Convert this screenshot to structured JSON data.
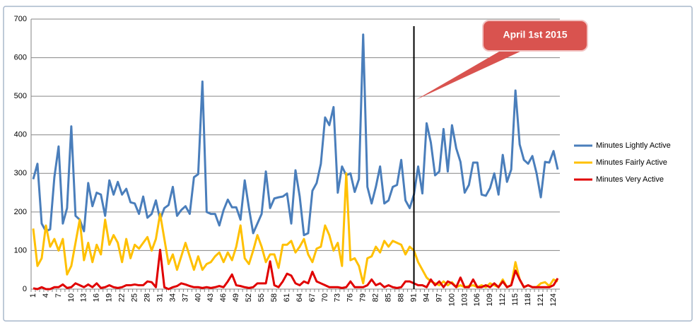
{
  "chart_data": {
    "type": "line",
    "categories": [
      1,
      null,
      null,
      4,
      null,
      null,
      7,
      null,
      null,
      10,
      null,
      null,
      13,
      null,
      null,
      16,
      null,
      null,
      19,
      null,
      null,
      22,
      null,
      null,
      25,
      null,
      null,
      28,
      null,
      null,
      31,
      null,
      null,
      34,
      null,
      null,
      37,
      null,
      null,
      40,
      null,
      null,
      43,
      null,
      null,
      46,
      null,
      null,
      49,
      null,
      null,
      52,
      null,
      null,
      55,
      null,
      null,
      58,
      null,
      null,
      61,
      null,
      null,
      64,
      null,
      null,
      67,
      null,
      null,
      70,
      null,
      null,
      73,
      null,
      null,
      76,
      null,
      null,
      79,
      null,
      null,
      82,
      null,
      null,
      85,
      null,
      null,
      88,
      null,
      null,
      91,
      null,
      null,
      94,
      null,
      null,
      97,
      null,
      null,
      100,
      null,
      null,
      103,
      null,
      null,
      106,
      null,
      null,
      109,
      null,
      null,
      112,
      null,
      null,
      115,
      null,
      null,
      118,
      null,
      null,
      121,
      null,
      null,
      124,
      null
    ],
    "series": [
      {
        "name": "Minutes Lightly Active",
        "color": "#4a7ebb",
        "values": [
          285,
          325,
          170,
          150,
          155,
          290,
          370,
          170,
          210,
          422,
          190,
          180,
          150,
          275,
          215,
          250,
          245,
          190,
          282,
          245,
          278,
          245,
          260,
          225,
          222,
          195,
          240,
          185,
          195,
          230,
          180,
          210,
          218,
          265,
          190,
          205,
          215,
          195,
          290,
          298,
          538,
          200,
          195,
          195,
          165,
          205,
          232,
          212,
          212,
          180,
          282,
          210,
          145,
          170,
          195,
          305,
          210,
          235,
          238,
          240,
          248,
          170,
          308,
          240,
          140,
          145,
          255,
          275,
          325,
          445,
          425,
          472,
          250,
          318,
          295,
          300,
          252,
          285,
          660,
          265,
          222,
          265,
          318,
          222,
          230,
          265,
          270,
          335,
          230,
          210,
          245,
          318,
          248,
          430,
          380,
          295,
          305,
          415,
          305,
          425,
          365,
          330,
          250,
          270,
          328,
          328,
          245,
          242,
          262,
          300,
          245,
          348,
          278,
          310,
          515,
          375,
          335,
          325,
          345,
          300,
          238,
          330,
          328,
          358,
          310
        ]
      },
      {
        "name": "Minutes Fairly Active",
        "color": "#ffc000",
        "values": [
          157,
          60,
          80,
          165,
          110,
          130,
          100,
          130,
          38,
          60,
          120,
          180,
          75,
          120,
          70,
          115,
          90,
          180,
          115,
          140,
          120,
          70,
          130,
          80,
          115,
          105,
          120,
          135,
          100,
          130,
          195,
          130,
          65,
          90,
          50,
          85,
          120,
          85,
          50,
          85,
          50,
          65,
          70,
          85,
          95,
          70,
          95,
          75,
          110,
          165,
          80,
          65,
          100,
          140,
          110,
          70,
          90,
          90,
          55,
          115,
          115,
          125,
          95,
          110,
          130,
          90,
          70,
          105,
          110,
          165,
          140,
          100,
          120,
          60,
          300,
          75,
          80,
          60,
          15,
          80,
          85,
          110,
          95,
          125,
          110,
          125,
          120,
          115,
          90,
          110,
          100,
          70,
          50,
          30,
          20,
          15,
          10,
          20,
          10,
          18,
          5,
          10,
          5,
          8,
          10,
          5,
          10,
          5,
          15,
          10,
          5,
          25,
          5,
          10,
          70,
          25,
          5,
          10,
          5,
          5,
          15,
          18,
          8,
          25,
          20
        ]
      },
      {
        "name": "Minutes Very Active",
        "color": "#e00000",
        "values": [
          2,
          0,
          5,
          0,
          0,
          5,
          5,
          12,
          3,
          5,
          15,
          10,
          5,
          12,
          5,
          15,
          3,
          5,
          10,
          5,
          3,
          5,
          10,
          10,
          12,
          10,
          10,
          20,
          18,
          5,
          102,
          5,
          0,
          5,
          8,
          15,
          12,
          8,
          5,
          5,
          3,
          5,
          3,
          5,
          8,
          5,
          20,
          38,
          10,
          8,
          5,
          3,
          5,
          15,
          15,
          15,
          72,
          10,
          5,
          20,
          40,
          35,
          15,
          10,
          20,
          15,
          45,
          20,
          15,
          10,
          5,
          5,
          5,
          3,
          5,
          20,
          5,
          5,
          5,
          10,
          25,
          10,
          15,
          5,
          10,
          5,
          3,
          5,
          20,
          20,
          15,
          10,
          10,
          5,
          25,
          10,
          20,
          5,
          20,
          15,
          5,
          30,
          5,
          5,
          25,
          5,
          5,
          10,
          5,
          15,
          5,
          20,
          5,
          10,
          48,
          25,
          5,
          10,
          5,
          5,
          5,
          5,
          5,
          10,
          28
        ]
      }
    ],
    "ylim": [
      0,
      700
    ],
    "yticks": [
      0,
      100,
      200,
      300,
      400,
      500,
      600,
      700
    ],
    "grid": true,
    "legend": "right",
    "annotation": {
      "text": "April 1st 2015",
      "at": 91
    }
  }
}
